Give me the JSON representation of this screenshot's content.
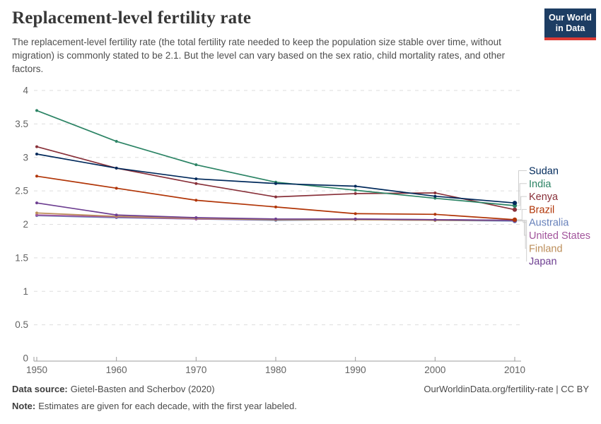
{
  "header": {
    "title": "Replacement-level fertility rate",
    "subtitle": "The replacement-level fertility rate (the total fertility rate needed to keep the population size stable over time, without migration) is commonly stated to be 2.1. But the level can vary based on the sex ratio, child mortality rates, and other factors.",
    "logo": {
      "line1": "Our World",
      "line2": "in Data",
      "bg_color": "#1D3D63",
      "stripe_color": "#DC3A34"
    }
  },
  "chart_data": {
    "type": "line",
    "title": "Replacement-level fertility rate",
    "x": [
      1950,
      1960,
      1970,
      1980,
      1990,
      2000,
      2010
    ],
    "x_tick_labels": [
      "1950",
      "1960",
      "1970",
      "1980",
      "1990",
      "2000",
      "2010"
    ],
    "y_ticks": [
      0,
      0.5,
      1,
      1.5,
      2,
      2.5,
      3,
      3.5,
      4
    ],
    "ylim": [
      0,
      4
    ],
    "grid": "horizontal-dashed",
    "legend_position": "right",
    "point_markers": true,
    "series": [
      {
        "name": "Sudan",
        "color": "#00295B",
        "values": [
          3.05,
          2.84,
          2.68,
          2.61,
          2.57,
          2.42,
          2.32
        ]
      },
      {
        "name": "India",
        "color": "#2C8465",
        "values": [
          3.7,
          3.24,
          2.89,
          2.63,
          2.51,
          2.39,
          2.28
        ]
      },
      {
        "name": "Kenya",
        "color": "#883039",
        "values": [
          3.16,
          2.84,
          2.61,
          2.41,
          2.46,
          2.47,
          2.22
        ]
      },
      {
        "name": "Brazil",
        "color": "#B13507",
        "values": [
          2.72,
          2.54,
          2.36,
          2.26,
          2.16,
          2.15,
          2.07
        ]
      },
      {
        "name": "Australia",
        "color": "#6882BB",
        "values": [
          2.13,
          2.1,
          2.08,
          2.06,
          2.07,
          2.06,
          2.05
        ]
      },
      {
        "name": "United States",
        "color": "#A2559C",
        "values": [
          2.14,
          2.11,
          2.08,
          2.07,
          2.08,
          2.07,
          2.06
        ]
      },
      {
        "name": "Finland",
        "color": "#BC8E5A",
        "values": [
          2.17,
          2.12,
          2.09,
          2.07,
          2.07,
          2.06,
          2.06
        ]
      },
      {
        "name": "Japan",
        "color": "#6D3E91",
        "values": [
          2.32,
          2.14,
          2.1,
          2.08,
          2.08,
          2.07,
          2.06
        ]
      }
    ]
  },
  "footer": {
    "source_label": "Data source:",
    "source_text": "Gietel-Basten and Scherbov (2020)",
    "note_label": "Note:",
    "note_text": "Estimates are given for each decade, with the first year labeled.",
    "link": "OurWorldinData.org/fertility-rate | CC BY"
  }
}
